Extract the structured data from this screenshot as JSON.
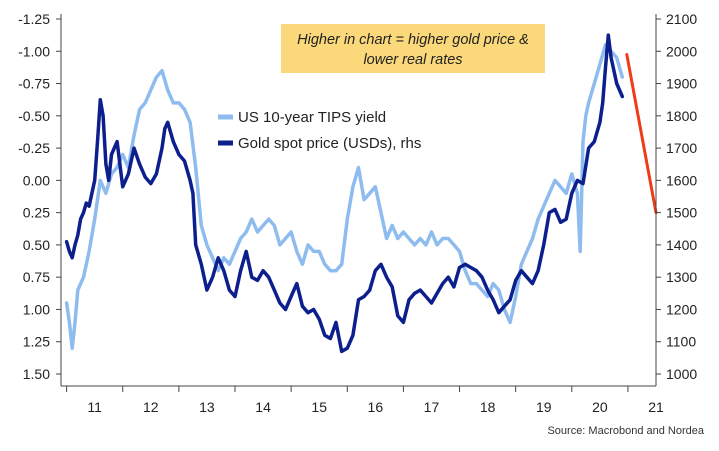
{
  "chart_data": {
    "type": "line",
    "title": "",
    "annotation": [
      "Higher in chart = higher gold price &",
      "lower real rates"
    ],
    "source": "Source: Macrobond and Nordea",
    "x_ticks": [
      "11",
      "12",
      "13",
      "14",
      "15",
      "16",
      "17",
      "18",
      "19",
      "20",
      "21"
    ],
    "xlim": [
      2010.9,
      2021.5
    ],
    "left_axis": {
      "inverted": true,
      "ylim": [
        1.5,
        -1.25
      ],
      "ticks": [
        -1.25,
        -1.0,
        -0.75,
        -0.5,
        -0.25,
        0.0,
        0.25,
        0.5,
        0.75,
        1.0,
        1.25,
        1.5
      ],
      "tick_labels": [
        "-1.25",
        "-1.00",
        "-0.75",
        "-0.50",
        "-0.25",
        "0.00",
        "0.25",
        "0.50",
        "0.75",
        "1.00",
        "1.25",
        "1.50"
      ]
    },
    "right_axis": {
      "ylim": [
        1000,
        2100
      ],
      "ticks": [
        1000,
        1100,
        1200,
        1300,
        1400,
        1500,
        1600,
        1700,
        1800,
        1900,
        2000,
        2100
      ],
      "tick_labels": [
        "1000",
        "1100",
        "1200",
        "1300",
        "1400",
        "1500",
        "1600",
        "1700",
        "1800",
        "1900",
        "2000",
        "2100"
      ]
    },
    "legend": {
      "placement": "center-top"
    },
    "series": [
      {
        "name": "US 10-year TIPS yield",
        "axis": "left",
        "color": "#8fbcee",
        "x": [
          2011.0,
          2011.05,
          2011.1,
          2011.15,
          2011.2,
          2011.3,
          2011.4,
          2011.5,
          2011.6,
          2011.7,
          2011.8,
          2011.9,
          2012.0,
          2012.1,
          2012.2,
          2012.3,
          2012.4,
          2012.5,
          2012.6,
          2012.7,
          2012.8,
          2012.9,
          2013.0,
          2013.1,
          2013.2,
          2013.3,
          2013.4,
          2013.5,
          2013.6,
          2013.7,
          2013.8,
          2013.9,
          2014.0,
          2014.1,
          2014.2,
          2014.3,
          2014.4,
          2014.5,
          2014.6,
          2014.7,
          2014.8,
          2014.9,
          2015.0,
          2015.1,
          2015.2,
          2015.3,
          2015.4,
          2015.5,
          2015.6,
          2015.7,
          2015.8,
          2015.9,
          2016.0,
          2016.1,
          2016.2,
          2016.3,
          2016.4,
          2016.5,
          2016.6,
          2016.7,
          2016.8,
          2016.9,
          2017.0,
          2017.1,
          2017.2,
          2017.3,
          2017.4,
          2017.5,
          2017.6,
          2017.7,
          2017.8,
          2017.9,
          2018.0,
          2018.1,
          2018.2,
          2018.3,
          2018.4,
          2018.5,
          2018.6,
          2018.7,
          2018.8,
          2018.9,
          2019.0,
          2019.1,
          2019.2,
          2019.3,
          2019.4,
          2019.5,
          2019.6,
          2019.7,
          2019.8,
          2019.9,
          2020.0,
          2020.1,
          2020.15,
          2020.2,
          2020.25,
          2020.3,
          2020.4,
          2020.5,
          2020.6,
          2020.7,
          2020.8,
          2020.9
        ],
        "values": [
          0.95,
          1.1,
          1.3,
          1.1,
          0.85,
          0.75,
          0.55,
          0.3,
          0.0,
          0.1,
          -0.05,
          -0.1,
          -0.2,
          -0.1,
          -0.35,
          -0.55,
          -0.6,
          -0.7,
          -0.8,
          -0.85,
          -0.7,
          -0.6,
          -0.6,
          -0.55,
          -0.45,
          -0.1,
          0.35,
          0.5,
          0.6,
          0.7,
          0.6,
          0.65,
          0.55,
          0.45,
          0.4,
          0.3,
          0.4,
          0.35,
          0.3,
          0.35,
          0.5,
          0.45,
          0.4,
          0.55,
          0.65,
          0.5,
          0.55,
          0.55,
          0.65,
          0.7,
          0.7,
          0.65,
          0.3,
          0.05,
          -0.1,
          0.15,
          0.1,
          0.05,
          0.25,
          0.45,
          0.35,
          0.45,
          0.4,
          0.45,
          0.5,
          0.45,
          0.5,
          0.4,
          0.5,
          0.45,
          0.45,
          0.5,
          0.55,
          0.7,
          0.8,
          0.8,
          0.85,
          0.9,
          0.8,
          0.85,
          1.0,
          1.1,
          0.9,
          0.65,
          0.55,
          0.45,
          0.3,
          0.2,
          0.1,
          0.0,
          0.05,
          0.1,
          -0.05,
          0.1,
          0.55,
          -0.3,
          -0.5,
          -0.6,
          -0.75,
          -0.9,
          -1.05,
          -1.0,
          -0.95,
          -0.8
        ]
      },
      {
        "name": "Gold spot price (USDs), rhs",
        "axis": "right",
        "color": "#0c1f8c",
        "x": [
          2011.0,
          2011.05,
          2011.1,
          2011.15,
          2011.2,
          2011.25,
          2011.3,
          2011.35,
          2011.4,
          2011.45,
          2011.5,
          2011.55,
          2011.6,
          2011.65,
          2011.7,
          2011.75,
          2011.8,
          2011.9,
          2012.0,
          2012.1,
          2012.2,
          2012.3,
          2012.4,
          2012.5,
          2012.6,
          2012.7,
          2012.75,
          2012.8,
          2012.9,
          2013.0,
          2013.1,
          2013.2,
          2013.25,
          2013.3,
          2013.4,
          2013.5,
          2013.6,
          2013.7,
          2013.8,
          2013.9,
          2014.0,
          2014.1,
          2014.2,
          2014.3,
          2014.4,
          2014.5,
          2014.6,
          2014.7,
          2014.8,
          2014.9,
          2015.0,
          2015.1,
          2015.2,
          2015.3,
          2015.4,
          2015.5,
          2015.6,
          2015.7,
          2015.8,
          2015.9,
          2016.0,
          2016.1,
          2016.2,
          2016.3,
          2016.4,
          2016.5,
          2016.6,
          2016.7,
          2016.8,
          2016.9,
          2017.0,
          2017.1,
          2017.2,
          2017.3,
          2017.4,
          2017.5,
          2017.6,
          2017.7,
          2017.8,
          2017.9,
          2018.0,
          2018.1,
          2018.2,
          2018.3,
          2018.4,
          2018.5,
          2018.6,
          2018.7,
          2018.8,
          2018.9,
          2019.0,
          2019.1,
          2019.2,
          2019.3,
          2019.4,
          2019.5,
          2019.6,
          2019.7,
          2019.8,
          2019.9,
          2020.0,
          2020.1,
          2020.2,
          2020.3,
          2020.4,
          2020.5,
          2020.55,
          2020.6,
          2020.65,
          2020.7,
          2020.75,
          2020.8,
          2020.9
        ],
        "values": [
          1410,
          1380,
          1360,
          1400,
          1430,
          1480,
          1500,
          1530,
          1520,
          1560,
          1600,
          1720,
          1850,
          1800,
          1650,
          1600,
          1680,
          1720,
          1580,
          1620,
          1700,
          1650,
          1610,
          1590,
          1620,
          1700,
          1760,
          1780,
          1720,
          1680,
          1660,
          1600,
          1560,
          1400,
          1340,
          1260,
          1300,
          1360,
          1320,
          1260,
          1240,
          1320,
          1380,
          1300,
          1290,
          1320,
          1300,
          1260,
          1220,
          1200,
          1240,
          1280,
          1210,
          1190,
          1200,
          1170,
          1120,
          1110,
          1160,
          1070,
          1080,
          1120,
          1230,
          1240,
          1260,
          1320,
          1340,
          1300,
          1270,
          1180,
          1160,
          1230,
          1250,
          1260,
          1240,
          1220,
          1250,
          1280,
          1300,
          1270,
          1330,
          1340,
          1330,
          1320,
          1300,
          1260,
          1230,
          1190,
          1210,
          1230,
          1290,
          1320,
          1300,
          1280,
          1320,
          1400,
          1500,
          1510,
          1470,
          1480,
          1560,
          1600,
          1590,
          1700,
          1720,
          1780,
          1840,
          1950,
          2050,
          1980,
          1940,
          1900,
          1860
        ]
      },
      {
        "name": "",
        "axis": "right",
        "color": "#f03c16",
        "x": [
          2020.98,
          2021.5
        ],
        "values": [
          1990,
          1500
        ]
      }
    ]
  }
}
